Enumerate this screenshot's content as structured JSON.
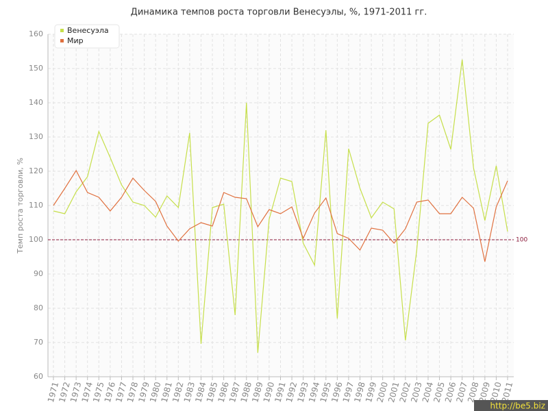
{
  "chart_data": {
    "type": "line",
    "title": "Динамика темпов роста торговли Венесуэлы, %, 1971-2011 гг.",
    "y_label": "Темп роста торговли, %",
    "x": [
      1971,
      1972,
      1973,
      1974,
      1975,
      1976,
      1977,
      1978,
      1979,
      1980,
      1981,
      1982,
      1983,
      1984,
      1985,
      1986,
      1987,
      1988,
      1989,
      1990,
      1991,
      1992,
      1993,
      1994,
      1995,
      1996,
      1997,
      1998,
      1999,
      2000,
      2001,
      2002,
      2003,
      2004,
      2005,
      2006,
      2007,
      2008,
      2009,
      2010,
      2011
    ],
    "xlim": [
      1971,
      2011
    ],
    "ylim": [
      60,
      160
    ],
    "yticks": [
      60,
      70,
      80,
      90,
      100,
      110,
      120,
      130,
      140,
      150,
      160
    ],
    "grid": true,
    "legend": "top-left",
    "series": [
      {
        "name": "Венесуэла",
        "color": "#c6df4a",
        "values": [
          108.4,
          107.6,
          114,
          118.4,
          131.6,
          124,
          116,
          111,
          110,
          106.6,
          112.8,
          109.4,
          131.2,
          69.6,
          109.4,
          110.4,
          78,
          140,
          67,
          106,
          118,
          117,
          99,
          92.6,
          132,
          77,
          126.6,
          115,
          106.4,
          111,
          109,
          70.6,
          97,
          134,
          136.4,
          126.4,
          152.6,
          121,
          105.6,
          121.6,
          102.4
        ]
      },
      {
        "name": "Мир",
        "color": "#e0703e",
        "values": [
          110,
          115,
          120.2,
          113.8,
          112.4,
          108.4,
          112.4,
          118,
          114.4,
          111.2,
          104,
          99.6,
          103.2,
          105,
          104,
          113.8,
          112.4,
          112,
          103.8,
          108.8,
          107.6,
          109.6,
          100.4,
          107.8,
          112.2,
          101.8,
          100.4,
          97,
          103.4,
          102.8,
          99,
          103.2,
          111,
          111.6,
          107.6,
          107.6,
          112.4,
          109.2,
          93.6,
          109.6,
          117.2
        ]
      }
    ],
    "reference_line": {
      "value": 100,
      "label": "100",
      "color": "#8b1a3a"
    },
    "watermark": "http://be5.biz"
  }
}
